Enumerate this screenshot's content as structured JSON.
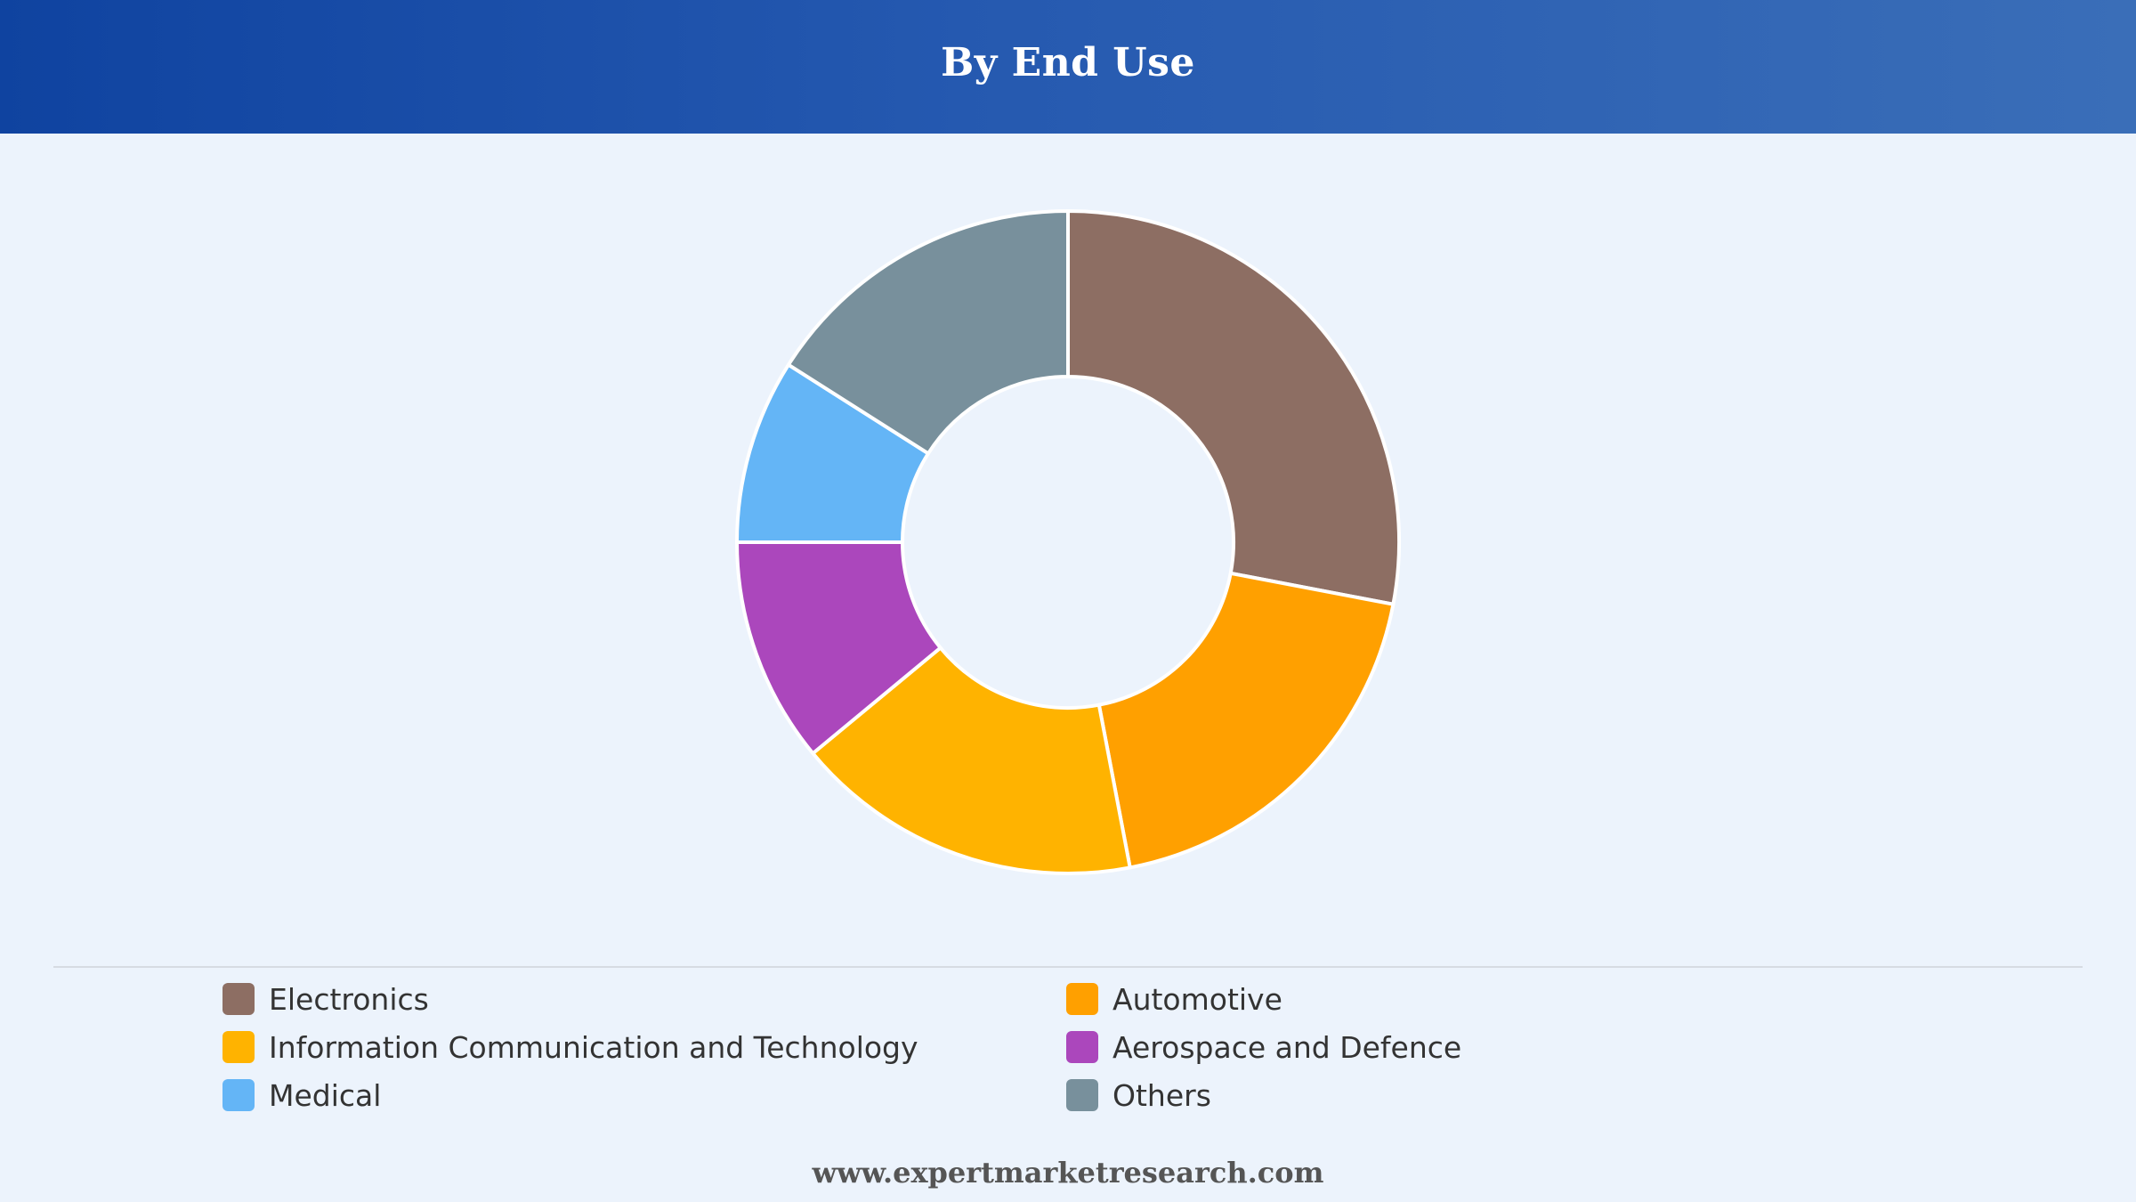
{
  "header": {
    "title": "By End Use"
  },
  "chart_data": {
    "type": "pie",
    "donut": true,
    "title": "By End Use",
    "legend_position": "bottom",
    "series": [
      {
        "name": "Electronics",
        "value": 28,
        "color": "#8d6e63"
      },
      {
        "name": "Automotive",
        "value": 19,
        "color": "#ffa000"
      },
      {
        "name": "Information Communication and Technology",
        "value": 17,
        "color": "#ffb300"
      },
      {
        "name": "Aerospace and Defence",
        "value": 11,
        "color": "#ab47bc"
      },
      {
        "name": "Medical",
        "value": 9,
        "color": "#64b5f6"
      },
      {
        "name": "Others",
        "value": 16,
        "color": "#78909c"
      }
    ]
  },
  "legend": {
    "items": [
      {
        "label": "Electronics",
        "color": "#8d6e63"
      },
      {
        "label": "Automotive",
        "color": "#ffa000"
      },
      {
        "label": "Information Communication and Technology",
        "color": "#ffb300"
      },
      {
        "label": "Aerospace and Defence",
        "color": "#ab47bc"
      },
      {
        "label": "Medical",
        "color": "#64b5f6"
      },
      {
        "label": "Others",
        "color": "#78909c"
      }
    ]
  },
  "footer": {
    "url": "www.expertmarketresearch.com"
  }
}
